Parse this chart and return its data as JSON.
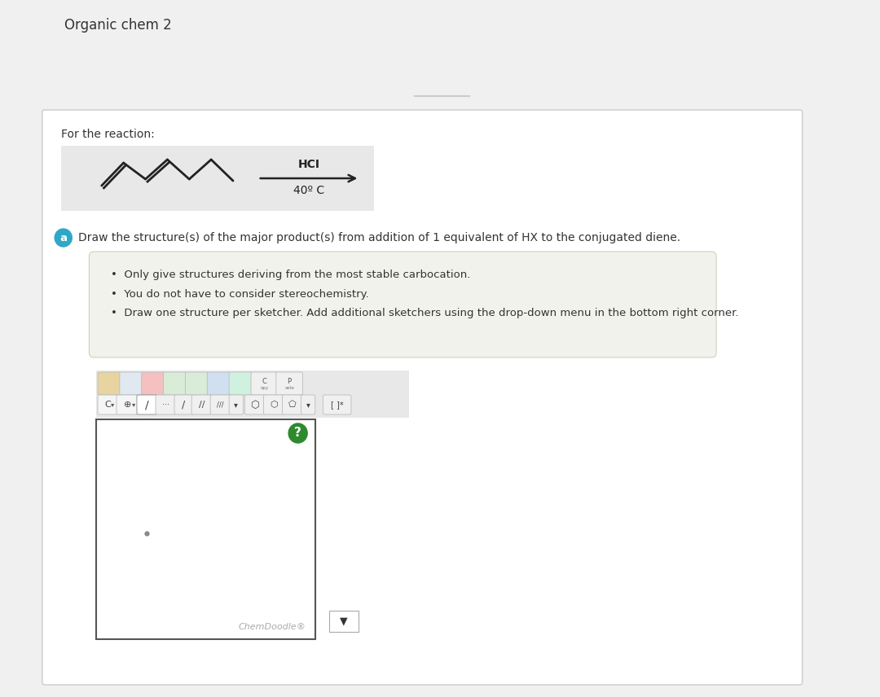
{
  "title": "Organic chem 2",
  "title_fontsize": 12,
  "page_bg": "#f0f0f0",
  "outer_box_color": "#ffffff",
  "outer_box_border": "#cccccc",
  "for_reaction_text": "For the reaction:",
  "reaction_box_bg": "#e8e8e8",
  "hci_text": "HCI",
  "temp_text": "40º C",
  "label_a_bg": "#2fa8c8",
  "label_a_text": "a",
  "question_text": "Draw the structure(s) of the major product(s) from addition of 1 equivalent of HX to the conjugated diene.",
  "bullet_box_bg": "#f2f2ec",
  "bullet_box_border": "#d0d0c0",
  "bullets": [
    "Only give structures deriving from the most stable carbocation.",
    "You do not have to consider stereochemistry.",
    "Draw one structure per sketcher. Add additional sketchers using the drop-down menu in the bottom right corner."
  ],
  "chemdoodle_text": "ChemDoodle®",
  "chemdoodle_color": "#aaaaaa",
  "sketcher_bg": "#ffffff",
  "sketcher_border": "#555555",
  "toolbar_bg": "#e0e0e0",
  "toolbar_border": "#cccccc",
  "question_mark_bg": "#2d8a2d",
  "dropdown_bg": "#ffffff",
  "dropdown_border": "#aaaaaa",
  "small_dot_color": "#888888",
  "line_top_color": "#cccccc",
  "diene_color": "#222222",
  "arrow_color": "#222222"
}
